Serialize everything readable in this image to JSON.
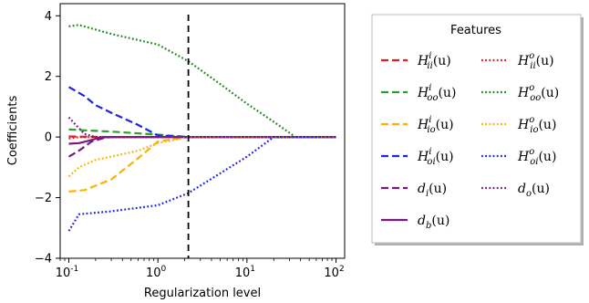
{
  "chart_data": {
    "type": "line",
    "xlabel": "Regularization level",
    "ylabel": "Coefficients",
    "xscale": "log",
    "xlim": [
      0.08,
      125
    ],
    "ylim": [
      -4,
      4.4
    ],
    "xticks": [
      0.1,
      1,
      10,
      100
    ],
    "xtick_labels": [
      "10^-1",
      "10^0",
      "10^1",
      "10^2"
    ],
    "yticks": [
      -4,
      -2,
      0,
      2,
      4
    ],
    "ytick_labels": [
      "−4",
      "−2",
      "0",
      "2",
      "4"
    ],
    "vline_x": 2.2,
    "grid": false,
    "legend": {
      "title": "Features",
      "placement": "right",
      "columns": 2
    },
    "series": [
      {
        "name": "H_ii^i(u)",
        "color": "#e41a1c",
        "dash": "dashed",
        "x": [
          0.1,
          0.15,
          0.3,
          1,
          2.2,
          10,
          100
        ],
        "y": [
          0.02,
          0.01,
          0.0,
          0.0,
          0.0,
          0.0,
          0.0
        ]
      },
      {
        "name": "H_oo^i(u)",
        "color": "#2ca02c",
        "dash": "dashed",
        "x": [
          0.1,
          0.15,
          0.3,
          1,
          2.2,
          10,
          100
        ],
        "y": [
          0.25,
          0.22,
          0.18,
          0.08,
          0.0,
          0.0,
          0.0
        ]
      },
      {
        "name": "H_io^i(u)",
        "color": "#ffb000",
        "dash": "dashed",
        "x": [
          0.1,
          0.15,
          0.3,
          0.6,
          1,
          2.2,
          10,
          100
        ],
        "y": [
          -1.8,
          -1.75,
          -1.4,
          -0.7,
          -0.15,
          0.0,
          0.0,
          0.0
        ]
      },
      {
        "name": "H_oi^i(u)",
        "color": "#1f24e0",
        "dash": "dashed",
        "x": [
          0.1,
          0.15,
          0.2,
          0.3,
          0.6,
          1,
          2.2,
          10,
          100
        ],
        "y": [
          1.65,
          1.35,
          1.05,
          0.8,
          0.4,
          0.05,
          0.0,
          0.0,
          0.0
        ]
      },
      {
        "name": "d_i(u)",
        "color": "#7b1a7e",
        "dash": "dashed",
        "x": [
          0.1,
          0.13,
          0.18,
          0.25,
          0.3,
          1,
          100
        ],
        "y": [
          -0.65,
          -0.45,
          -0.15,
          -0.03,
          0.0,
          0.0,
          0.0
        ]
      },
      {
        "name": "d_b(u)",
        "color": "#7b1a7e",
        "dash": "solid",
        "x": [
          0.1,
          0.13,
          0.17,
          0.22,
          0.3,
          1,
          100
        ],
        "y": [
          -0.22,
          -0.2,
          -0.12,
          -0.02,
          0.0,
          0.0,
          0.0
        ]
      },
      {
        "name": "H_ii^o(u)",
        "color": "#e41a1c",
        "dash": "dotted",
        "x": [
          0.1,
          0.13,
          0.2,
          1,
          100
        ],
        "y": [
          -0.05,
          0.0,
          0.0,
          0.0,
          0.0
        ]
      },
      {
        "name": "H_oo^o(u)",
        "color": "#1e8a1e",
        "dash": "dotted",
        "x": [
          0.1,
          0.13,
          0.3,
          1,
          2.2,
          5,
          10,
          20,
          35,
          100
        ],
        "y": [
          3.65,
          3.7,
          3.4,
          3.05,
          2.5,
          1.75,
          1.1,
          0.5,
          0.0,
          0.0
        ]
      },
      {
        "name": "H_io^o(u)",
        "color": "#ffb000",
        "dash": "dotted",
        "x": [
          0.1,
          0.13,
          0.2,
          0.3,
          0.6,
          1,
          2.2,
          10,
          100
        ],
        "y": [
          -1.3,
          -1.0,
          -0.75,
          -0.65,
          -0.45,
          -0.2,
          0.0,
          0.0,
          0.0
        ]
      },
      {
        "name": "H_oi^o(u)",
        "color": "#1f24e0",
        "dash": "dotted",
        "x": [
          0.1,
          0.13,
          0.3,
          1,
          2.2,
          5,
          10,
          20,
          100
        ],
        "y": [
          -3.1,
          -2.55,
          -2.45,
          -2.25,
          -1.85,
          -1.2,
          -0.65,
          0.0,
          0.0
        ]
      },
      {
        "name": "d_o(u)",
        "color": "#7b1a7e",
        "dash": "dotted",
        "x": [
          0.1,
          0.12,
          0.15,
          0.2,
          0.3,
          100
        ],
        "y": [
          0.65,
          0.4,
          0.1,
          0.0,
          0.0,
          0.0
        ]
      }
    ]
  },
  "legend_items": [
    {
      "key": "H_ii^i",
      "color": "#e41a1c",
      "dash": "dashed",
      "main": "H",
      "sup": "i",
      "sub": "ii",
      "arg": "(u)"
    },
    {
      "key": "H_ii^o",
      "color": "#e41a1c",
      "dash": "dotted",
      "main": "H",
      "sup": "o",
      "sub": "ii",
      "arg": "(u)"
    },
    {
      "key": "H_oo^i",
      "color": "#2ca02c",
      "dash": "dashed",
      "main": "H",
      "sup": "i",
      "sub": "oo",
      "arg": "(u)"
    },
    {
      "key": "H_oo^o",
      "color": "#1e8a1e",
      "dash": "dotted",
      "main": "H",
      "sup": "o",
      "sub": "oo",
      "arg": "(u)"
    },
    {
      "key": "H_io^i",
      "color": "#ffb000",
      "dash": "dashed",
      "main": "H",
      "sup": "i",
      "sub": "io",
      "arg": "(u)"
    },
    {
      "key": "H_io^o",
      "color": "#ffb000",
      "dash": "dotted",
      "main": "H",
      "sup": "o",
      "sub": "io",
      "arg": "(u)"
    },
    {
      "key": "H_oi^i",
      "color": "#1f24e0",
      "dash": "dashed",
      "main": "H",
      "sup": "i",
      "sub": "oi",
      "arg": "(u)"
    },
    {
      "key": "H_oi^o",
      "color": "#1f24e0",
      "dash": "dotted",
      "main": "H",
      "sup": "o",
      "sub": "oi",
      "arg": "(u)"
    },
    {
      "key": "d_i",
      "color": "#7b1a7e",
      "dash": "dashed",
      "main": "d",
      "sup": "",
      "sub": "i",
      "arg": "(u)"
    },
    {
      "key": "d_o",
      "color": "#7b1a7e",
      "dash": "dotted",
      "main": "d",
      "sup": "",
      "sub": "o",
      "arg": "(u)"
    },
    {
      "key": "d_b",
      "color": "#7b1a7e",
      "dash": "solid",
      "main": "d",
      "sup": "",
      "sub": "b",
      "arg": "(u)"
    }
  ]
}
